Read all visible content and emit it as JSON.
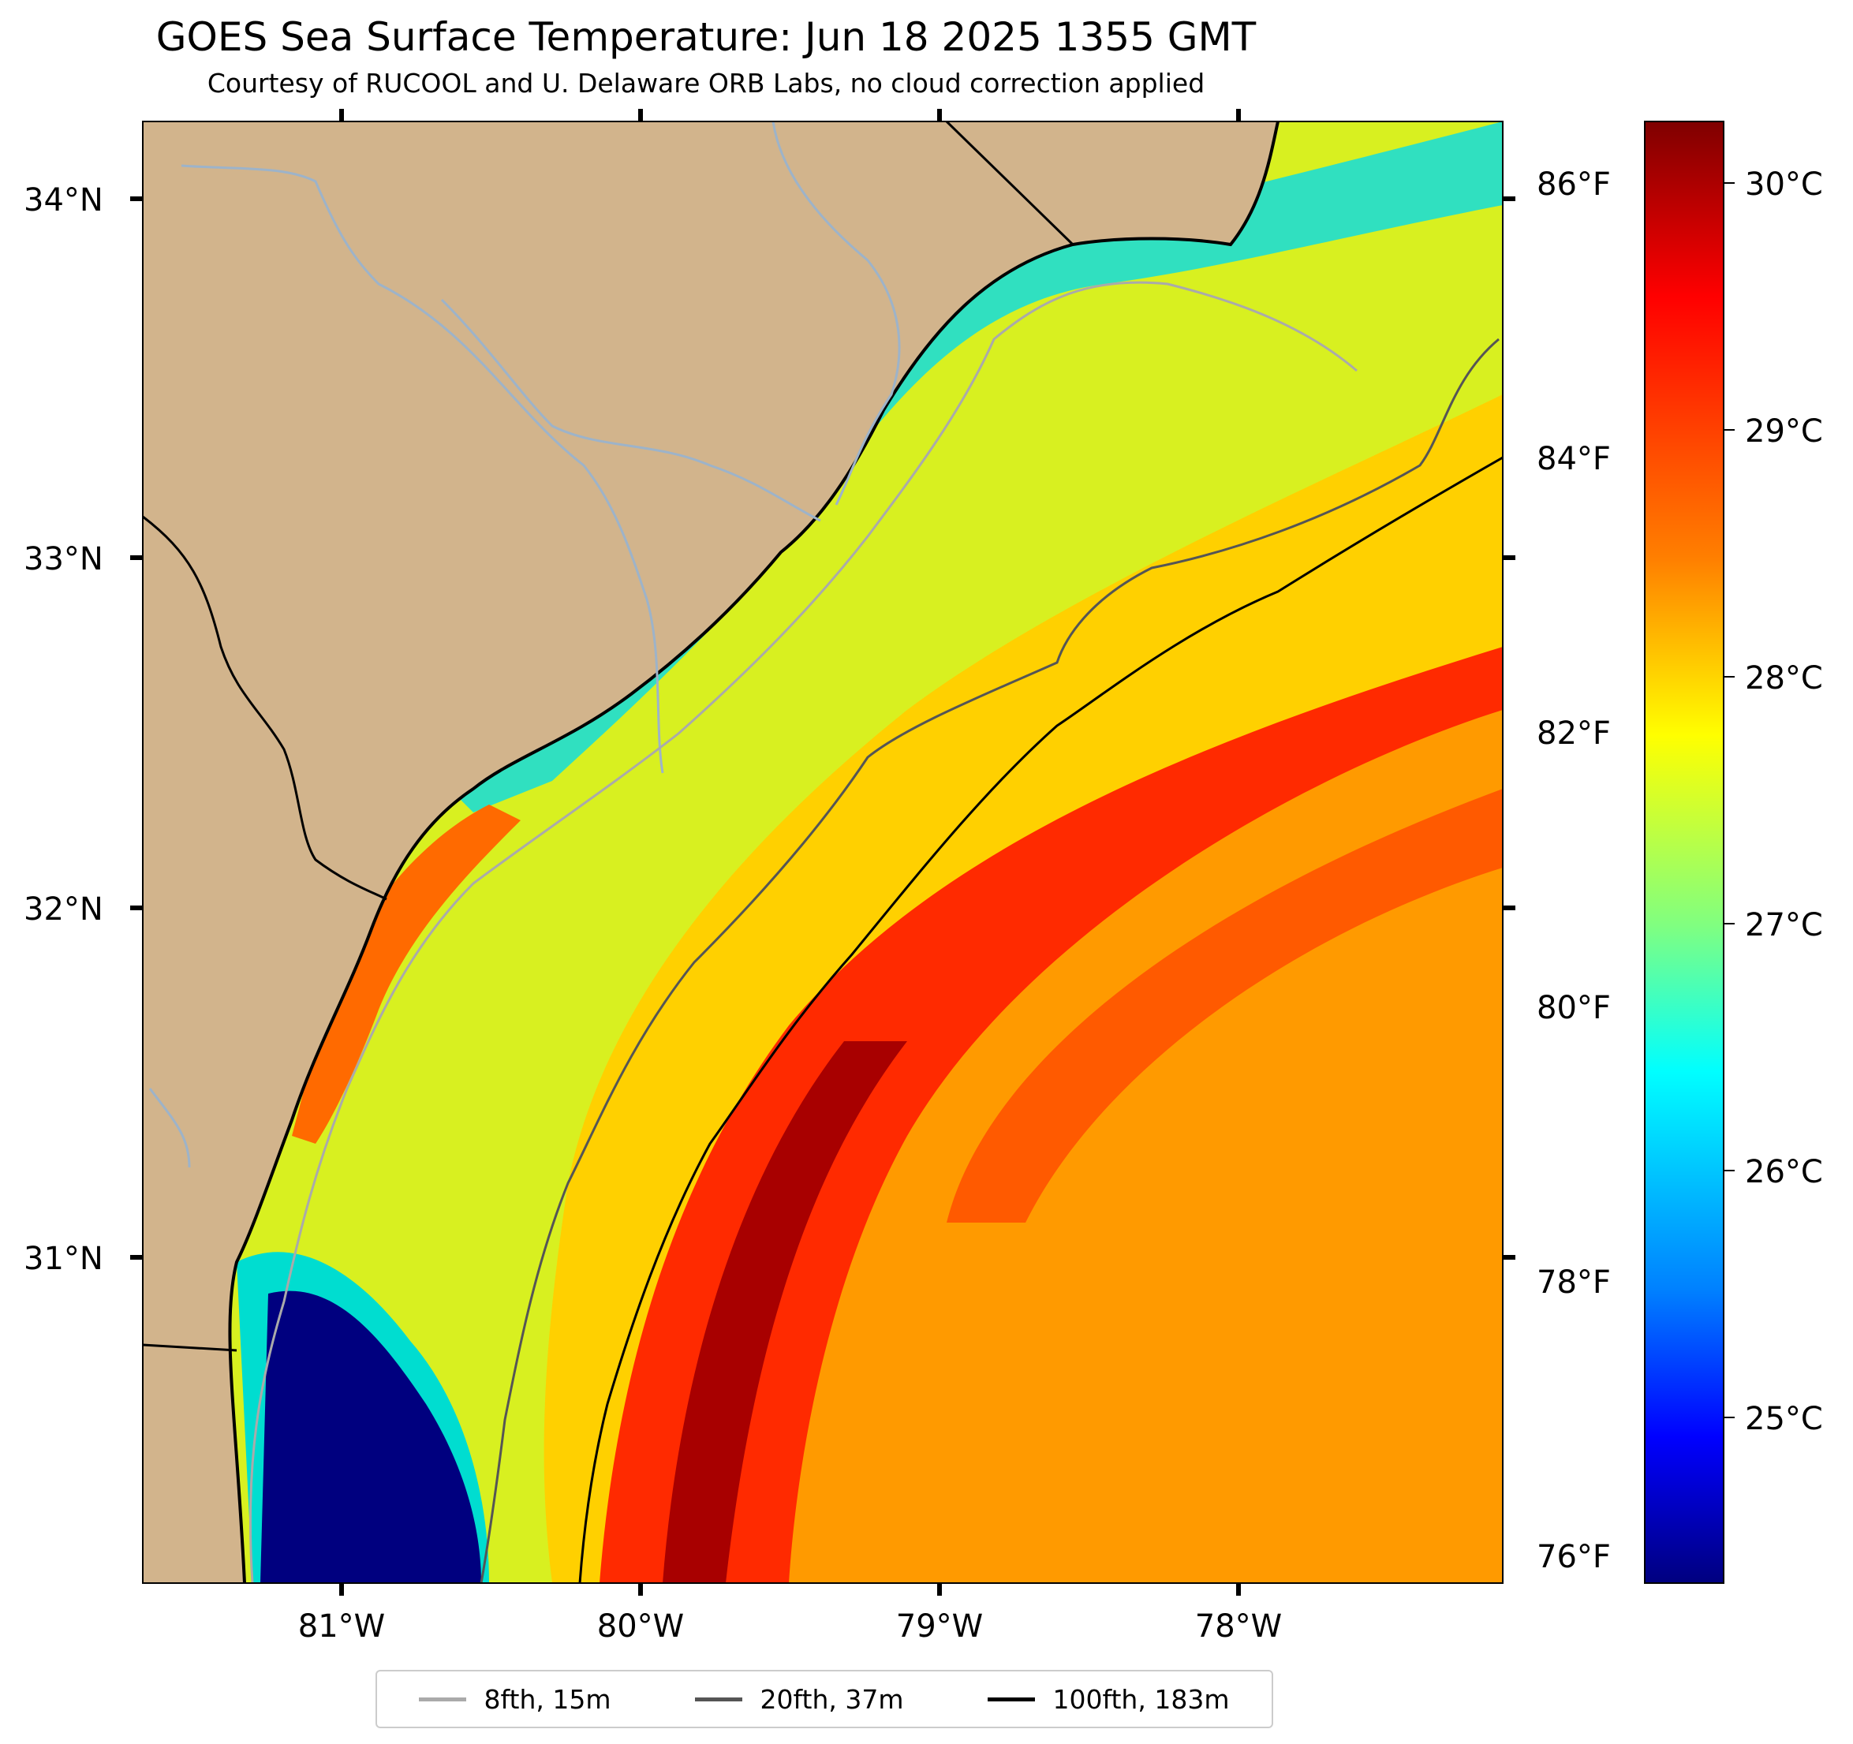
{
  "title": "GOES Sea Surface Temperature: Jun 18 2025 1355 GMT",
  "subtitle": "Courtesy of RUCOOL and U. Delaware ORB Labs, no cloud correction applied",
  "lat_labels": [
    "34°N",
    "33°N",
    "32°N",
    "31°N"
  ],
  "lon_labels": [
    "81°W",
    "80°W",
    "79°W",
    "78°W"
  ],
  "fahrenheit_labels": [
    "86°F",
    "84°F",
    "82°F",
    "80°F",
    "78°F",
    "76°F"
  ],
  "colorbar": {
    "celsius_labels": [
      "30°C",
      "29°C",
      "28°C",
      "27°C",
      "26°C",
      "25°C"
    ],
    "colormap": "jet",
    "colors": [
      "#7f0000",
      "#ff0000",
      "#ff8000",
      "#ffff00",
      "#80ff80",
      "#00ffff",
      "#0080ff",
      "#0000ff",
      "#00007f"
    ]
  },
  "legend": [
    {
      "label": "8fth, 15m",
      "color": "#aaaaaa"
    },
    {
      "label": "20fth, 37m",
      "color": "#555555"
    },
    {
      "label": "100fth, 183m",
      "color": "#000000"
    }
  ],
  "colors": {
    "land": "#d2b48c",
    "rivers": "#9db3c9",
    "coastline": "#000000",
    "nodata": "#ffffff"
  }
}
